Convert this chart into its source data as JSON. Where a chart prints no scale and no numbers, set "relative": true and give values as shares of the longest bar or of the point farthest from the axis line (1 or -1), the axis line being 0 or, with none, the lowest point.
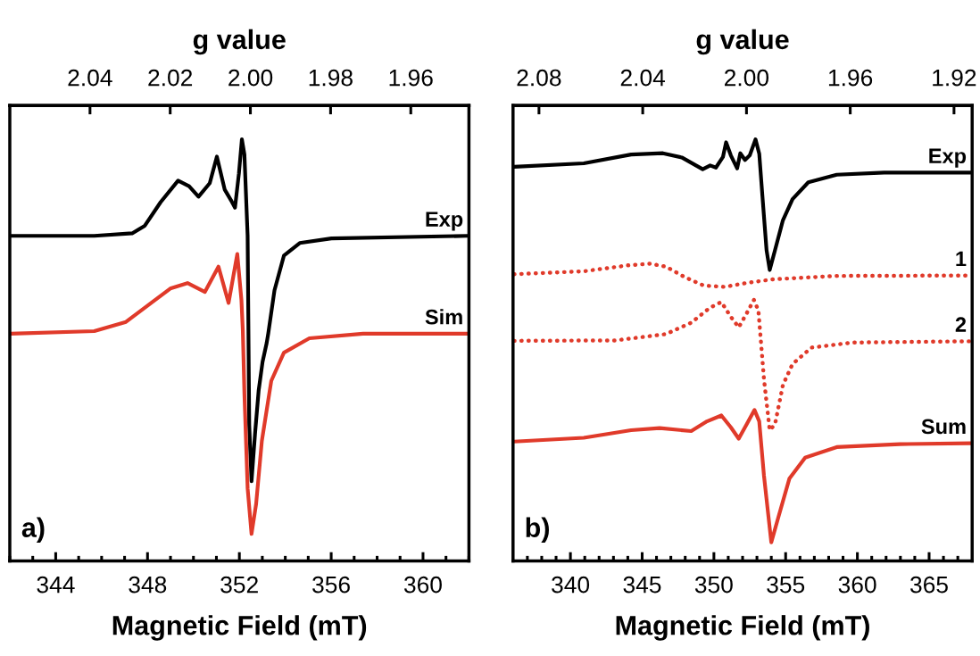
{
  "chart_data": [
    {
      "type": "line",
      "relative": true,
      "xlabel": "Magnetic Field (mT)",
      "x2label": "g value",
      "tick_labels": "x",
      "xlim": [
        342,
        362
      ],
      "xticks": [
        {
          "value": 342,
          "label": null
        },
        {
          "value": 343,
          "label": null
        },
        344,
        {
          "value": 345,
          "label": null
        },
        {
          "value": 346,
          "label": null
        },
        {
          "value": 347,
          "label": null
        },
        348,
        {
          "value": 349,
          "label": null
        },
        {
          "value": 350,
          "label": null
        },
        {
          "value": 351,
          "label": null
        },
        352,
        {
          "value": 353,
          "label": null
        },
        {
          "value": 354,
          "label": null
        },
        {
          "value": 355,
          "label": null
        },
        356,
        {
          "value": 357,
          "label": null
        },
        {
          "value": 358,
          "label": null
        },
        {
          "value": 359,
          "label": null
        },
        360,
        {
          "value": 361,
          "label": null
        },
        {
          "value": 362,
          "label": null
        }
      ],
      "x2lim": [
        2.06,
        1.9455
      ],
      "x2ticks": [
        {
          "value": 2.04,
          "label": "2.04"
        },
        {
          "value": 2.02,
          "label": "2.02"
        },
        {
          "value": 2.0,
          "label": "2.00"
        },
        {
          "value": 1.98,
          "label": "1.98"
        },
        {
          "value": 1.96,
          "label": "1.96"
        }
      ],
      "annotations": [
        "a)"
      ],
      "series": [
        {
          "name": "Exp",
          "color": "#000000",
          "line_style": "solid",
          "x": [
            342.03,
            345.68,
            347.33,
            347.88,
            348.57,
            349.33,
            349.81,
            350.22,
            350.71,
            351.02,
            351.36,
            351.64,
            351.81,
            351.98,
            352.11,
            352.22,
            352.36,
            352.43,
            352.53,
            352.68,
            352.84,
            353.01,
            353.19,
            353.26,
            353.53,
            353.94,
            354.63,
            356.01,
            361.93
          ],
          "values": [
            0.771,
            0.771,
            0.777,
            0.795,
            0.851,
            0.902,
            0.889,
            0.864,
            0.896,
            0.959,
            0.881,
            0.855,
            0.838,
            0.919,
            1.0,
            0.964,
            0.771,
            0.322,
            0.189,
            0.3,
            0.404,
            0.472,
            0.517,
            0.54,
            0.642,
            0.724,
            0.754,
            0.765,
            0.771
          ]
        },
        {
          "name": "Sim",
          "color": "#e03a2a",
          "line_style": "solid",
          "x": [
            342.03,
            345.68,
            347.06,
            348.16,
            348.99,
            349.74,
            350.5,
            351.09,
            351.53,
            351.91,
            352.09,
            352.15,
            352.22,
            352.36,
            352.53,
            352.73,
            352.98,
            353.39,
            353.94,
            355.05,
            357.39,
            362.0
          ],
          "values": [
            0.539,
            0.545,
            0.567,
            0.612,
            0.646,
            0.659,
            0.638,
            0.698,
            0.612,
            0.728,
            0.619,
            0.547,
            0.397,
            0.172,
            0.064,
            0.135,
            0.285,
            0.427,
            0.494,
            0.528,
            0.539,
            0.539
          ]
        }
      ]
    },
    {
      "type": "line",
      "relative": true,
      "xlabel": "Magnetic Field (mT)",
      "x2label": "g value",
      "tick_labels": "x",
      "xlim": [
        336,
        368
      ],
      "xticks": [
        {
          "value": 337,
          "label": null
        },
        {
          "value": 338,
          "label": null
        },
        {
          "value": 339,
          "label": null
        },
        340,
        {
          "value": 341,
          "label": null
        },
        {
          "value": 342,
          "label": null
        },
        {
          "value": 343,
          "label": null
        },
        {
          "value": 344,
          "label": null
        },
        345,
        {
          "value": 346,
          "label": null
        },
        {
          "value": 347,
          "label": null
        },
        {
          "value": 348,
          "label": null
        },
        {
          "value": 349,
          "label": null
        },
        350,
        {
          "value": 351,
          "label": null
        },
        {
          "value": 352,
          "label": null
        },
        {
          "value": 353,
          "label": null
        },
        {
          "value": 354,
          "label": null
        },
        355,
        {
          "value": 356,
          "label": null
        },
        {
          "value": 357,
          "label": null
        },
        {
          "value": 358,
          "label": null
        },
        {
          "value": 359,
          "label": null
        },
        360,
        {
          "value": 361,
          "label": null
        },
        {
          "value": 362,
          "label": null
        },
        {
          "value": 363,
          "label": null
        },
        {
          "value": 364,
          "label": null
        },
        365,
        {
          "value": 366,
          "label": null
        },
        {
          "value": 367,
          "label": null
        }
      ],
      "x2lim": [
        2.09,
        1.913
      ],
      "x2ticks": [
        {
          "value": 2.08,
          "label": "2.08"
        },
        {
          "value": 2.04,
          "label": "2.04"
        },
        {
          "value": 2.0,
          "label": "2.00"
        },
        {
          "value": 1.96,
          "label": "1.96"
        },
        {
          "value": 1.92,
          "label": "1.92"
        }
      ],
      "annotations": [
        "b)"
      ],
      "series": [
        {
          "name": "Exp",
          "color": "#000000",
          "line_style": "solid",
          "x": [
            336.08,
            340.93,
            344.23,
            346.44,
            347.76,
            349.22,
            349.74,
            350.14,
            350.63,
            350.85,
            351.18,
            351.62,
            351.84,
            352.17,
            352.5,
            352.9,
            353.16,
            353.38,
            353.67,
            353.89,
            354.26,
            354.81,
            355.48,
            356.58,
            358.56,
            361.87,
            367.93
          ],
          "values": [
            0.935,
            0.943,
            0.964,
            0.967,
            0.957,
            0.929,
            0.938,
            0.933,
            0.958,
            0.993,
            0.962,
            0.931,
            0.967,
            0.951,
            0.962,
            1.0,
            0.966,
            0.866,
            0.737,
            0.69,
            0.737,
            0.808,
            0.858,
            0.898,
            0.916,
            0.921,
            0.921
          ]
        },
        {
          "name": "1",
          "color": "#e03a2a",
          "line_style": "dotted",
          "x": [
            336.08,
            340.93,
            344.01,
            345.56,
            346.66,
            347.98,
            349.3,
            350.74,
            352.39,
            354.15,
            358.56,
            367.93
          ],
          "values": [
            0.68,
            0.687,
            0.701,
            0.705,
            0.698,
            0.673,
            0.653,
            0.65,
            0.66,
            0.668,
            0.676,
            0.677
          ]
        },
        {
          "name": "2",
          "color": "#e03a2a",
          "line_style": "dotted",
          "x": [
            336.08,
            343.13,
            346.66,
            348.42,
            349.74,
            350.52,
            351.18,
            351.73,
            352.28,
            352.79,
            353.1,
            353.27,
            353.49,
            353.89,
            354.26,
            354.81,
            355.48,
            356.8,
            359.66,
            367.93
          ],
          "values": [
            0.522,
            0.523,
            0.538,
            0.565,
            0.601,
            0.614,
            0.579,
            0.554,
            0.587,
            0.619,
            0.594,
            0.524,
            0.431,
            0.31,
            0.324,
            0.417,
            0.467,
            0.506,
            0.518,
            0.521
          ]
        },
        {
          "name": "Sum",
          "color": "#e03a2a",
          "line_style": "solid",
          "x": [
            336.08,
            340.93,
            344.23,
            346.22,
            348.42,
            349.52,
            350.52,
            351.18,
            351.73,
            352.28,
            352.83,
            353.16,
            353.49,
            354.0,
            354.48,
            355.26,
            356.36,
            358.56,
            362.97,
            367.93
          ],
          "values": [
            0.283,
            0.292,
            0.31,
            0.315,
            0.308,
            0.331,
            0.345,
            0.317,
            0.29,
            0.324,
            0.358,
            0.331,
            0.202,
            0.044,
            0.102,
            0.195,
            0.245,
            0.27,
            0.277,
            0.279
          ]
        }
      ]
    }
  ]
}
